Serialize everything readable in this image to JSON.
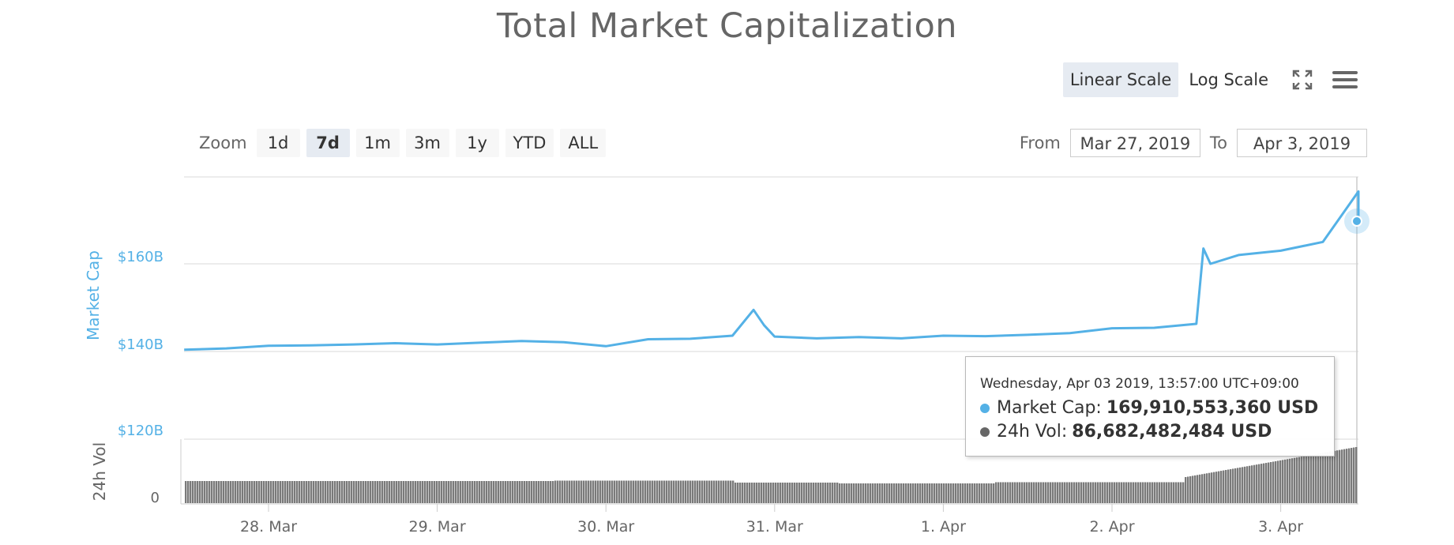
{
  "title": "Total Market Capitalization",
  "scale_buttons": {
    "linear": "Linear Scale",
    "log": "Log Scale",
    "active": "linear"
  },
  "icons": {
    "fullscreen": "fullscreen-icon",
    "menu": "hamburger-menu-icon"
  },
  "zoom": {
    "label": "Zoom",
    "buttons": [
      "1d",
      "7d",
      "1m",
      "3m",
      "1y",
      "YTD",
      "ALL"
    ],
    "active": "7d"
  },
  "range": {
    "from_label": "From",
    "from_value": "Mar 27, 2019",
    "to_label": "To",
    "to_value": "Apr 3, 2019"
  },
  "tooltip": {
    "date": "Wednesday, Apr 03 2019, 13:57:00 UTC+09:00",
    "rows": [
      {
        "label": "Market Cap:",
        "value": "169,910,553,360 USD",
        "color": "#54b1e6"
      },
      {
        "label": "24h Vol:",
        "value": "86,682,482,484 USD",
        "color": "#666666"
      }
    ]
  },
  "colors": {
    "market_cap": "#54b1e6",
    "volume": "#7a7a7a",
    "grid": "#e6e6e6",
    "axis_text": "#666666"
  },
  "chart_data": {
    "type": "line",
    "series": [
      {
        "name": "Market Cap",
        "unit": "USD",
        "points": [
          [
            "Mar 27 12:00",
            140.4
          ],
          [
            "Mar 27 18:00",
            140.7
          ],
          [
            "Mar 28 00:00",
            141.3
          ],
          [
            "Mar 28 06:00",
            141.4
          ],
          [
            "Mar 28 12:00",
            141.6
          ],
          [
            "Mar 28 18:00",
            141.9
          ],
          [
            "Mar 29 00:00",
            141.6
          ],
          [
            "Mar 29 06:00",
            142.0
          ],
          [
            "Mar 29 12:00",
            142.4
          ],
          [
            "Mar 29 18:00",
            142.1
          ],
          [
            "Mar 30 00:00",
            141.2
          ],
          [
            "Mar 30 06:00",
            142.8
          ],
          [
            "Mar 30 12:00",
            142.9
          ],
          [
            "Mar 30 18:00",
            143.6
          ],
          [
            "Mar 30 21:00",
            149.5
          ],
          [
            "Mar 30 22:30",
            146.0
          ],
          [
            "Mar 31 00:00",
            143.4
          ],
          [
            "Mar 31 06:00",
            143.0
          ],
          [
            "Mar 31 12:00",
            143.3
          ],
          [
            "Mar 31 18:00",
            143.0
          ],
          [
            "Apr 1 00:00",
            143.6
          ],
          [
            "Apr 1 06:00",
            143.5
          ],
          [
            "Apr 1 12:00",
            143.8
          ],
          [
            "Apr 1 18:00",
            144.2
          ],
          [
            "Apr 2 00:00",
            145.3
          ],
          [
            "Apr 2 06:00",
            145.4
          ],
          [
            "Apr 2 12:00",
            146.3
          ],
          [
            "Apr 2 13:00",
            163.5
          ],
          [
            "Apr 2 14:00",
            160.0
          ],
          [
            "Apr 2 18:00",
            162.0
          ],
          [
            "Apr 3 00:00",
            163.0
          ],
          [
            "Apr 3 06:00",
            165.0
          ],
          [
            "Apr 3 12:00",
            176.5
          ],
          [
            "Apr 3 13:57",
            169.9
          ]
        ]
      },
      {
        "name": "24h Vol",
        "unit": "USD",
        "description": "volume bars, rising sharply on Apr 2-3"
      }
    ],
    "x_tick_labels": [
      "28. Mar",
      "29. Mar",
      "30. Mar",
      "31. Mar",
      "1. Apr",
      "2. Apr",
      "3. Apr"
    ],
    "y_axis_market_cap": {
      "label": "Market Cap",
      "tick_labels": [
        "$120B",
        "$140B",
        "$160B"
      ],
      "ylim": [
        120,
        180
      ]
    },
    "y_axis_volume": {
      "label": "24h Vol",
      "tick_labels": [
        "0"
      ]
    },
    "grid": true,
    "legend": "none"
  }
}
